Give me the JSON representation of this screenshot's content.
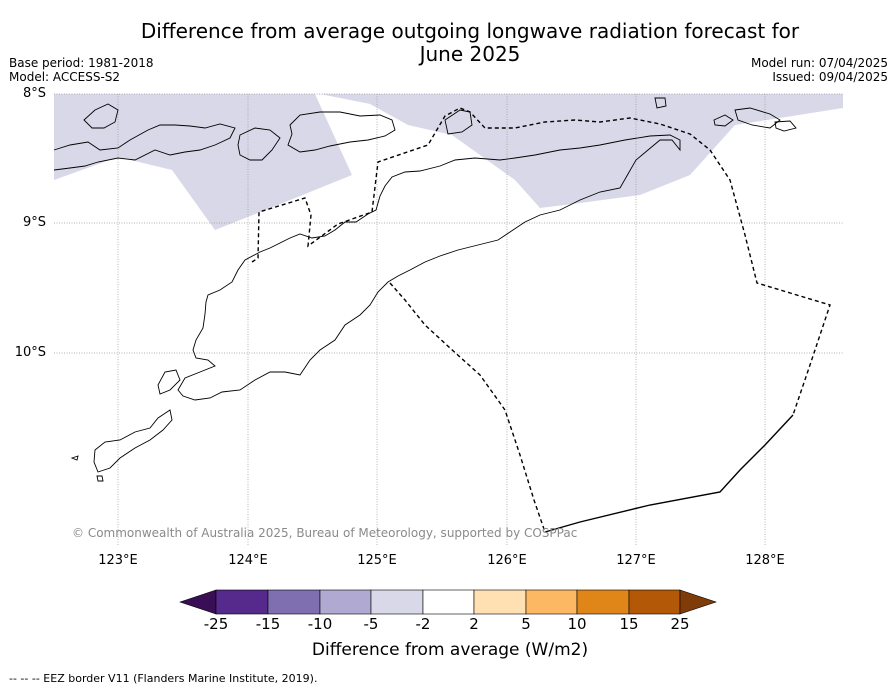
{
  "title": {
    "line1": "Difference from average outgoing longwave radiation forecast for",
    "line2": "June 2025"
  },
  "meta": {
    "base_period": "Base period: 1981-2018",
    "model": "Model: ACCESS-S2",
    "model_run": "Model run: 07/04/2025",
    "issued": "Issued: 09/04/2025"
  },
  "map": {
    "lat_labels": [
      "8°S",
      "9°S",
      "10°S"
    ],
    "lon_labels": [
      "123°E",
      "124°E",
      "125°E",
      "126°E",
      "127°E",
      "128°E"
    ],
    "copyright": "© Commonwealth of Australia 2025, Bureau of Meteorology, supported by COSPPac",
    "anomaly_fill_color": "#d8d8e8",
    "coastline_color": "#000000",
    "grid_color": "#999999"
  },
  "colorbar": {
    "ticks": [
      "-25",
      "-15",
      "-10",
      "-5",
      "-2",
      "2",
      "5",
      "10",
      "15",
      "25"
    ],
    "colors": [
      "#3a0e55",
      "#562a8c",
      "#7f6fb0",
      "#b0a9d2",
      "#d8d8e8",
      "#ffffff",
      "#ffe0b3",
      "#fdb863",
      "#e08518",
      "#b35807",
      "#7f3b08"
    ],
    "label": "Difference from average (W/m2)"
  },
  "footer": {
    "text": "--  --  -- EEZ border V11 (Flanders Marine Institute, 2019)."
  }
}
